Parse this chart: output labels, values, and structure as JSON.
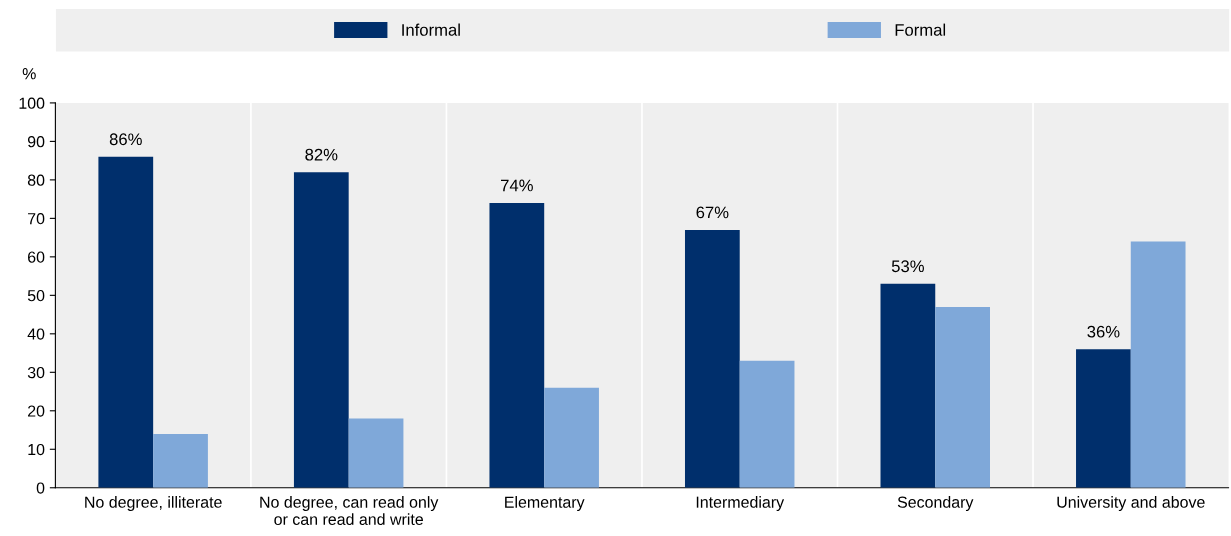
{
  "chart_data": {
    "type": "bar",
    "ylabel": "%",
    "categories": [
      "No degree, illiterate",
      "No degree, can read only\nor can read and write",
      "Elementary",
      "Intermediary",
      "Secondary",
      "University and above"
    ],
    "series": [
      {
        "name": "Informal",
        "color": "#002f6c",
        "values": [
          86,
          82,
          74,
          67,
          53,
          36
        ],
        "value_labels": [
          "86%",
          "82%",
          "74%",
          "67%",
          "53%",
          "36%"
        ]
      },
      {
        "name": "Formal",
        "color": "#7fa8d9",
        "values": [
          14,
          18,
          26,
          33,
          47,
          64
        ]
      }
    ],
    "ylim": [
      0,
      100
    ],
    "yticks": [
      0,
      10,
      20,
      30,
      40,
      50,
      60,
      70,
      80,
      90,
      100
    ],
    "grid": "x",
    "legend": "top"
  }
}
